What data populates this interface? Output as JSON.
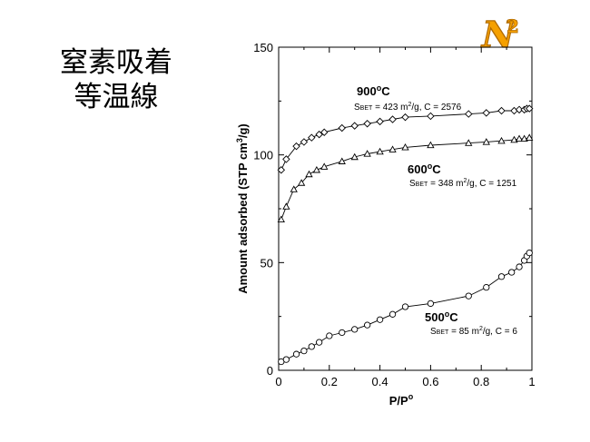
{
  "slide": {
    "title_line1": "窒素吸着",
    "title_line2": "等温線",
    "logo_text": "N",
    "logo_subscript": "2",
    "accent_color": "#f5a000"
  },
  "chart_data": {
    "type": "line",
    "xlabel_main": "P/P",
    "xlabel_sup": "o",
    "ylabel_main": "Amount adsorbed (STP cm",
    "ylabel_sup": "3",
    "ylabel_end": "/g)",
    "xlim": [
      0,
      1
    ],
    "ylim": [
      0,
      150
    ],
    "xticks": [
      0,
      0.2,
      0.4,
      0.6,
      0.8,
      1
    ],
    "xtick_labels": [
      "0",
      "0.2",
      "0.4",
      "0.6",
      "0.8",
      "1"
    ],
    "yticks": [
      0,
      50,
      100,
      150
    ],
    "ytick_labels": [
      "0",
      "50",
      "100",
      "150"
    ],
    "grid": false,
    "series": [
      {
        "name": "900",
        "marker": "diamond",
        "label_line1_sup": "o",
        "label_line1_end": "C",
        "label_line2": "S",
        "label_line2_sub": "BET",
        "label_line2_rest": " = 423 m",
        "label_line2_sup": "2",
        "label_line2_end": "/g, C = 2576",
        "x": [
          0.01,
          0.03,
          0.07,
          0.1,
          0.13,
          0.16,
          0.18,
          0.25,
          0.3,
          0.35,
          0.4,
          0.45,
          0.5,
          0.6,
          0.75,
          0.82,
          0.88,
          0.93,
          0.95,
          0.97,
          0.98,
          0.99
        ],
        "y": [
          93,
          98,
          104,
          106,
          108,
          109.5,
          110.5,
          112.5,
          113.5,
          114.5,
          115.5,
          116.5,
          117.5,
          118,
          119,
          119.5,
          120.5,
          120.5,
          121,
          121,
          121.5,
          121.5
        ]
      },
      {
        "name": "600",
        "marker": "triangle",
        "label_line1_sup": "o",
        "label_line1_end": "C",
        "label_line2": "S",
        "label_line2_sub": "BET",
        "label_line2_rest": " = 348 m",
        "label_line2_sup": "2",
        "label_line2_end": "/g, C = 1251",
        "x": [
          0.01,
          0.03,
          0.06,
          0.09,
          0.12,
          0.15,
          0.18,
          0.25,
          0.3,
          0.35,
          0.4,
          0.45,
          0.5,
          0.6,
          0.75,
          0.82,
          0.88,
          0.93,
          0.95,
          0.97,
          0.99
        ],
        "y": [
          70,
          76,
          84,
          87,
          91,
          93,
          94.5,
          97,
          99,
          100.5,
          101.5,
          102.5,
          103.5,
          104.5,
          105.5,
          106,
          106.5,
          107,
          107.5,
          107.5,
          108
        ]
      },
      {
        "name": "500",
        "marker": "circle",
        "label_line1_sup": "o",
        "label_line1_end": "C",
        "label_line2": "S",
        "label_line2_sub": "BET",
        "label_line2_rest": " = 85 m",
        "label_line2_sup": "2",
        "label_line2_end": "/g, C = 6",
        "x": [
          0.01,
          0.03,
          0.07,
          0.1,
          0.13,
          0.16,
          0.2,
          0.25,
          0.3,
          0.35,
          0.4,
          0.45,
          0.5,
          0.6,
          0.75,
          0.82,
          0.88,
          0.92,
          0.95,
          0.97,
          0.98,
          0.99
        ],
        "y": [
          4,
          5,
          7.5,
          9,
          11,
          13,
          16,
          17.5,
          19,
          21,
          23.5,
          26,
          29.5,
          31,
          34.5,
          38.5,
          43.5,
          45.5,
          48,
          51,
          53,
          54.5
        ]
      }
    ]
  }
}
